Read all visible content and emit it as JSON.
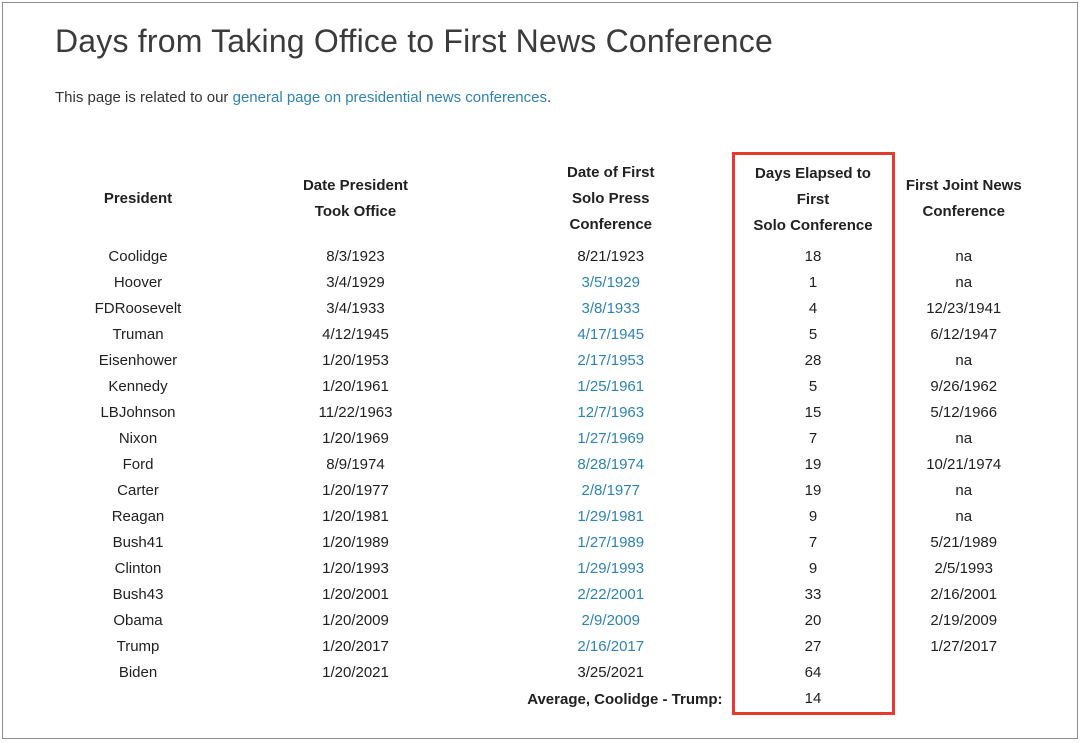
{
  "page": {
    "title": "Days from Taking Office to First News Conference",
    "intro": {
      "prefix": "This page is related to our ",
      "link_text": "general page on presidential news conferences",
      "suffix": "."
    }
  },
  "colors": {
    "link_blue": "#2f83b2",
    "highlight_box_red": "#e63a2e",
    "title_gray": "#3b3b3b"
  },
  "table": {
    "headers": {
      "president": "President",
      "took_office": "Date President\nTook Office",
      "solo_conference": "Date of First\nSolo Press\nConference",
      "days_elapsed": "Days Elapsed to\nFirst\nSolo Conference",
      "joint_conference": "First Joint News\nConference"
    },
    "rows": [
      {
        "president": "Coolidge",
        "took_office": "8/3/1923",
        "solo_date": "8/21/1923",
        "solo_is_link": false,
        "days": "18",
        "joint": "na"
      },
      {
        "president": "Hoover",
        "took_office": "3/4/1929",
        "solo_date": "3/5/1929",
        "solo_is_link": true,
        "days": "1",
        "joint": "na"
      },
      {
        "president": "FDRoosevelt",
        "took_office": "3/4/1933",
        "solo_date": "3/8/1933",
        "solo_is_link": true,
        "days": "4",
        "joint": "12/23/1941"
      },
      {
        "president": "Truman",
        "took_office": "4/12/1945",
        "solo_date": "4/17/1945",
        "solo_is_link": true,
        "days": "5",
        "joint": "6/12/1947"
      },
      {
        "president": "Eisenhower",
        "took_office": "1/20/1953",
        "solo_date": "2/17/1953",
        "solo_is_link": true,
        "days": "28",
        "joint": "na"
      },
      {
        "president": "Kennedy",
        "took_office": "1/20/1961",
        "solo_date": "1/25/1961",
        "solo_is_link": true,
        "days": "5",
        "joint": "9/26/1962"
      },
      {
        "president": "LBJohnson",
        "took_office": "11/22/1963",
        "solo_date": "12/7/1963",
        "solo_is_link": true,
        "days": "15",
        "joint": "5/12/1966"
      },
      {
        "president": "Nixon",
        "took_office": "1/20/1969",
        "solo_date": "1/27/1969",
        "solo_is_link": true,
        "days": "7",
        "joint": "na"
      },
      {
        "president": "Ford",
        "took_office": "8/9/1974",
        "solo_date": "8/28/1974",
        "solo_is_link": true,
        "days": "19",
        "joint": "10/21/1974"
      },
      {
        "president": "Carter",
        "took_office": "1/20/1977",
        "solo_date": "2/8/1977",
        "solo_is_link": true,
        "days": "19",
        "joint": "na"
      },
      {
        "president": "Reagan",
        "took_office": "1/20/1981",
        "solo_date": "1/29/1981",
        "solo_is_link": true,
        "days": "9",
        "joint": "na"
      },
      {
        "president": "Bush41",
        "took_office": "1/20/1989",
        "solo_date": "1/27/1989",
        "solo_is_link": true,
        "days": "7",
        "joint": "5/21/1989"
      },
      {
        "president": "Clinton",
        "took_office": "1/20/1993",
        "solo_date": "1/29/1993",
        "solo_is_link": true,
        "days": "9",
        "joint": "2/5/1993"
      },
      {
        "president": "Bush43",
        "took_office": "1/20/2001",
        "solo_date": "2/22/2001",
        "solo_is_link": true,
        "days": "33",
        "joint": "2/16/2001"
      },
      {
        "president": "Obama",
        "took_office": "1/20/2009",
        "solo_date": "2/9/2009",
        "solo_is_link": true,
        "days": "20",
        "joint": "2/19/2009"
      },
      {
        "president": "Trump",
        "took_office": "1/20/2017",
        "solo_date": "2/16/2017",
        "solo_is_link": true,
        "days": "27",
        "joint": "1/27/2017"
      },
      {
        "president": "Biden",
        "took_office": "1/20/2021",
        "solo_date": "3/25/2021",
        "solo_is_link": false,
        "days": "64",
        "joint": ""
      }
    ],
    "average_row": {
      "label": "Average, Coolidge - Trump:",
      "days": "14"
    }
  }
}
